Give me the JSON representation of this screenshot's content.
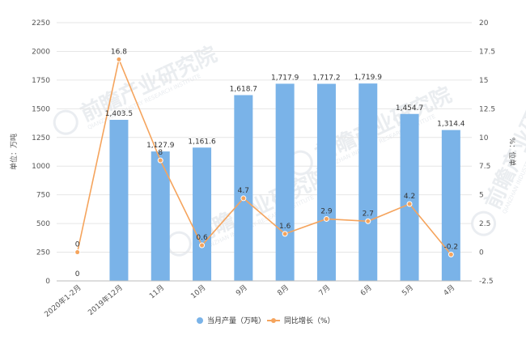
{
  "chart_data": {
    "type": "bar",
    "categories": [
      "2020年1-2月",
      "2019年12月",
      "11月",
      "10月",
      "9月",
      "8月",
      "7月",
      "6月",
      "5月",
      "4月"
    ],
    "series": [
      {
        "name": "当月产量（万吨）",
        "type": "bar",
        "axis": "left",
        "values": [
          0,
          1403.5,
          1127.9,
          1161.6,
          1618.7,
          1717.9,
          1717.2,
          1719.9,
          1454.7,
          1314.4
        ],
        "labels": [
          "0",
          "1,403.5",
          "1,127.9",
          "1,161.6",
          "1,618.7",
          "1,717.9",
          "1,717.2",
          "1,719.9",
          "1,454.7",
          "1,314.4"
        ],
        "color": "#7ab3e8"
      },
      {
        "name": "同比增长（%）",
        "type": "line",
        "axis": "right",
        "values": [
          0,
          16.8,
          8,
          0.6,
          4.7,
          1.6,
          2.9,
          2.7,
          4.2,
          -0.2
        ],
        "labels": [
          "0",
          "16.8",
          "8",
          "0.6",
          "4.7",
          "1.6",
          "2.9",
          "2.7",
          "4.2",
          "-0.2"
        ],
        "color": "#f5a45d"
      }
    ],
    "ylabel": "单位：万吨",
    "y2label": "%：位单",
    "ylim": [
      0,
      2250
    ],
    "y2lim": [
      -2.5,
      20
    ],
    "yticks": [
      "0",
      "250",
      "500",
      "750",
      "1000",
      "1250",
      "1500",
      "1750",
      "2000",
      "2250"
    ],
    "y2ticks": [
      "-2.5",
      "0",
      "2.5",
      "5",
      "7.5",
      "10",
      "12.5",
      "15",
      "17.5",
      "20"
    ],
    "grid": true,
    "legend_position": "bottom"
  },
  "watermark": {
    "text": "前瞻产业研究院",
    "sub": "QIANZHAN INDUSTRY RESEARCH INSTITUTE"
  }
}
